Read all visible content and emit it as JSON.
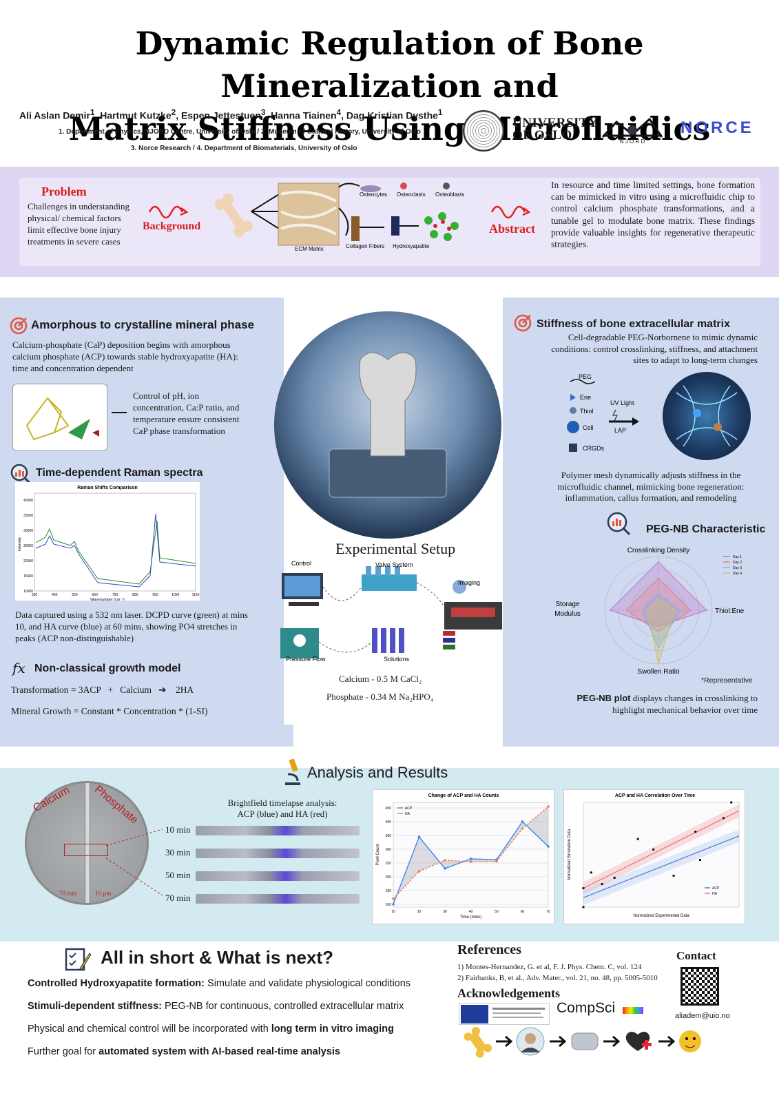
{
  "title": {
    "line1": "Dynamic Regulation of Bone Mineralization and",
    "line2": "Matrix Stiffness Using Microfluidics"
  },
  "authors": [
    {
      "name": "Ali Aslan Demir",
      "sup": "1"
    },
    {
      "name": "Hartmut Kutzke",
      "sup": "2"
    },
    {
      "name": "Espen Jettestuen",
      "sup": "3"
    },
    {
      "name": "Hanna Tiainen",
      "sup": "4"
    },
    {
      "name": "Dag Kristian Dysthe",
      "sup": "1"
    }
  ],
  "affiliations": {
    "line1": "1. Department of Physics, NJORD Centre, University of Oslo / 2. Museum of Cultural History, University of Oslo",
    "line2": "3. Norce Research / 4. Department of Biomaterials, University of Oslo"
  },
  "logos": {
    "uio_line1": "UNIVERSITY",
    "uio_line2": "OF OSLO",
    "njord": "N J O R D",
    "norce": "NORCE"
  },
  "intro": {
    "problem_label": "Problem",
    "problem_text": "Challenges in understanding physical/ chemical factors limit effective bone injury treatments in severe cases",
    "background_label": "Background",
    "abstract_label": "Abstract",
    "abstract_text": "In resource and time limited settings, bone formation can be mimicked in vitro using a microfluidic chip to control calcium phosphate transformations, and a tunable gel to modulate bone matrix. These findings provide valuable insights for regenerative therapeutic strategies.",
    "diagram": {
      "osteocytes": "Osteocytes",
      "osteoclasts": "Osteoclasts",
      "osteoblasts": "Osteoblasts",
      "ecm": "ECM Matrix",
      "collagen": "Collagen Fibers",
      "hydroxyapatite": "Hydroxyapatite"
    }
  },
  "left": {
    "section1_title": "Amorphous to crystalline mineral phase",
    "section1_text": "Calcium-phosphate (CaP) deposition begins with amorphous calcium phosphate (ACP) towards stable hydroxyapatite (HA): time and concentration dependent",
    "section1_control": "Control of pH, ion concentration, Ca:P ratio, and temperature ensure consistent CaP phase transformation",
    "section2_title": "Time-dependent Raman spectra",
    "raman_caption": "Data captured using a 532 nm laser. DCPD curve (green) at mins 10, and HA curve (blue) at 60 mins, showing PO4 stretches in peaks (ACP non-distinguishable)",
    "section3_title": "Non-classical growth model",
    "eq1": {
      "lhs": "Transformation = 3ACP",
      "plus": "+",
      "mid": "Calcium",
      "arrow": "➔",
      "rhs": "2HA"
    },
    "eq2": "Mineral Growth = Constant * Concentration * (1-SI)"
  },
  "center": {
    "setup_title": "Experimental Setup",
    "labels": {
      "control": "Control",
      "valve": "Valve System",
      "imaging": "Imaging",
      "pressure": "Pressure Flow",
      "solutions": "Solutions"
    },
    "calcium": "Calcium - 0.5 M CaCl₂",
    "phosphate": "Phosphate - 0.34 M Na₂HPO₄"
  },
  "right": {
    "section1_title": "Stiffness of bone extracellular matrix",
    "section1_text": "Cell-degradable PEG-Norbornene to mimic dynamic conditions: control crosslinking, stiffness, and attachment sites to adapt to long-term changes",
    "legend": {
      "peg": "PEG",
      "ene": "Ene",
      "thiol": "Thiol",
      "cell": "Cell",
      "crgds": "CRGDs",
      "uv": "UV Light",
      "lap": "LAP"
    },
    "section1_text2": "Polymer mesh dynamically adjusts stiffness in the microfluidic channel, mimicking bone regeneration: inflammation, callus formation, and remodeling",
    "section2_title": "PEG-NB Characteristic",
    "radar_axes": {
      "top": "Crosslinking Density",
      "right": "Thiol:Ene",
      "bottom": "Swollen Ratio",
      "left_line1": "Storage",
      "left_line2": "Modulus"
    },
    "representative": "*Representative",
    "plot_bold": "PEG-NB plot",
    "plot_caption": " displays changes in crosslinking to highlight mechanical behavior over time"
  },
  "results": {
    "title": "Analysis and Results",
    "circle_left": "Calcium",
    "circle_right": "Phosphate",
    "scale_left": "70 min",
    "scale_right": "10 µm",
    "brightfield_line1": "Brightfield timelapse analysis:",
    "brightfield_line2": "ACP (blue) and HA (red)",
    "timelapse_labels": [
      "10 min",
      "30 min",
      "50 min",
      "70 min"
    ]
  },
  "summary": {
    "title": "All in short & What is next?",
    "items": [
      {
        "bold": "Controlled Hydroxyapatite formation:",
        "text": " Simulate and validate physiological conditions"
      },
      {
        "bold": "Stimuli-dependent stiffness:",
        "text": " PEG-NB for continuous, controlled extracellular matrix"
      },
      {
        "pre": "Physical and chemical control will be incorporated with ",
        "bold": "long term in vitro imaging"
      },
      {
        "pre": "Further goal for ",
        "bold": "automated system with AI-based real-time analysis"
      }
    ]
  },
  "references": {
    "title": "References",
    "ref1": "1) Montes-Hernandez, G. et al, F. J. Phys. Chem. C, vol. 124",
    "ref2": "2) Fairbanks, B, et al.,  Adv. Mater., vol. 21, no. 48, pp. 5005-5010",
    "ack_title": "Acknowledgements",
    "compsci": "CompSci",
    "contact_title": "Contact",
    "email": "aliadem@uio.no"
  },
  "chart_data": [
    {
      "type": "line",
      "title": "Raman Shifts Comparison",
      "xlabel": "Wavenumber (cm⁻¹)",
      "ylabel": "Intensity",
      "x_ticks": [
        "350",
        "450",
        "550",
        "650",
        "750",
        "850",
        "950",
        "1050",
        "1150"
      ],
      "y_ticks": [
        "10000",
        "15000",
        "20000",
        "25000",
        "30000",
        "35000",
        "40000"
      ],
      "series": []
    },
    {
      "type": "line",
      "title": "Change of ACP and HA Counts",
      "xlabel": "Time (mins)",
      "ylabel": "Pixel Count",
      "x": [
        10,
        20,
        30,
        40,
        50,
        60,
        70
      ],
      "y_ticks": [
        "100",
        "150",
        "200",
        "250",
        "300",
        "350",
        "400",
        "450"
      ],
      "ylim": [
        90,
        470
      ],
      "series": [
        {
          "name": "ACP",
          "color": "#3f86f0",
          "values": [
            100,
            345,
            230,
            265,
            262,
            400,
            310
          ]
        },
        {
          "name": "HA",
          "color": "#ee7a4e",
          "values": [
            120,
            220,
            260,
            255,
            256,
            375,
            455
          ]
        }
      ]
    },
    {
      "type": "scatter",
      "title": "ACP and HA Correlation Over Time",
      "xlabel": "Normalized Experimental Data",
      "ylabel": "Normalized Simulation Data",
      "xlim": [
        0,
        1
      ],
      "ylim": [
        0,
        1
      ],
      "series": [
        {
          "name": "ACP",
          "color": "#4a78c8",
          "points": [
            [
              0.0,
              0.0
            ],
            [
              0.05,
              0.33
            ],
            [
              0.2,
              0.28
            ],
            [
              0.35,
              0.65
            ],
            [
              0.58,
              0.3
            ],
            [
              0.75,
              0.45
            ],
            [
              0.9,
              0.85
            ]
          ]
        },
        {
          "name": "HA",
          "color": "#e0707a",
          "points": [
            [
              0.0,
              0.18
            ],
            [
              0.12,
              0.22
            ],
            [
              0.45,
              0.55
            ],
            [
              0.72,
              0.72
            ],
            [
              0.95,
              1.0
            ]
          ]
        }
      ]
    },
    {
      "type": "radar",
      "axes": [
        "Crosslinking Density",
        "Thiol:Ene",
        "Swollen Ratio",
        "Storage Modulus"
      ],
      "rlim": [
        0,
        1
      ],
      "series": [
        {
          "name": "Day 1",
          "color": "#c070c8",
          "values": [
            0.9,
            0.9,
            0.3,
            0.9
          ]
        },
        {
          "name": "Day 2",
          "color": "#e08080",
          "values": [
            0.6,
            0.6,
            0.4,
            0.6
          ]
        },
        {
          "name": "Day 3",
          "color": "#80b0e0",
          "values": [
            0.3,
            0.4,
            0.7,
            0.3
          ]
        },
        {
          "name": "Day 4",
          "color": "#d0c060",
          "values": [
            0.2,
            0.3,
            1.0,
            0.2
          ]
        }
      ]
    }
  ]
}
